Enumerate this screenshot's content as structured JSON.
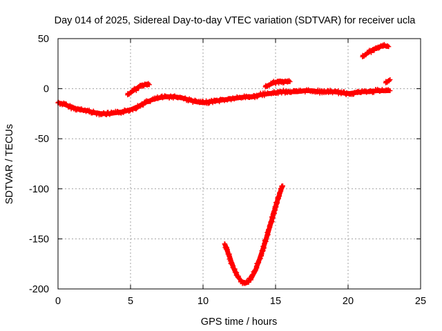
{
  "chart_data": {
    "type": "scatter",
    "title": "Day 014 of 2025, Sidereal Day-to-day VTEC variation (SDTVAR) for receiver ucla",
    "xlabel": "GPS time / hours",
    "ylabel": "SDTVAR / TECUs",
    "xlim": [
      0,
      25
    ],
    "ylim": [
      -200,
      50
    ],
    "xticks": [
      0,
      5,
      10,
      15,
      20,
      25
    ],
    "yticks": [
      -200,
      -150,
      -100,
      -50,
      0,
      50
    ],
    "grid": true,
    "legend": "none",
    "marker": "plus",
    "color": "#ff0000",
    "series": [
      {
        "name": "main-band",
        "points": [
          [
            0,
            -14
          ],
          [
            0.5,
            -16
          ],
          [
            1,
            -19
          ],
          [
            1.5,
            -21
          ],
          [
            2,
            -22
          ],
          [
            2.5,
            -24
          ],
          [
            3,
            -25
          ],
          [
            3.5,
            -25
          ],
          [
            4,
            -24
          ],
          [
            4.5,
            -23
          ],
          [
            5,
            -21
          ],
          [
            5.5,
            -18
          ],
          [
            6,
            -14
          ],
          [
            6.5,
            -11
          ],
          [
            7,
            -9
          ],
          [
            7.5,
            -8
          ],
          [
            8,
            -8
          ],
          [
            8.5,
            -9
          ],
          [
            9,
            -11
          ],
          [
            9.5,
            -13
          ],
          [
            10,
            -14
          ],
          [
            10.5,
            -13
          ],
          [
            11,
            -12
          ],
          [
            11.5,
            -11
          ],
          [
            12,
            -10
          ],
          [
            12.5,
            -9
          ],
          [
            13,
            -8
          ],
          [
            13.5,
            -8
          ],
          [
            14,
            -6
          ],
          [
            14.5,
            -5
          ],
          [
            15,
            -4
          ],
          [
            15.5,
            -3
          ],
          [
            16,
            -3
          ],
          [
            16.5,
            -3
          ],
          [
            17,
            -2
          ],
          [
            17.5,
            -2
          ],
          [
            18,
            -3
          ],
          [
            18.5,
            -3
          ],
          [
            19,
            -3
          ],
          [
            19.5,
            -4
          ],
          [
            20,
            -5
          ],
          [
            20.5,
            -4
          ],
          [
            21,
            -3
          ],
          [
            21.5,
            -3
          ],
          [
            22,
            -2
          ],
          [
            22.5,
            -2
          ],
          [
            22.9,
            -2
          ]
        ]
      },
      {
        "name": "arc-5-6h",
        "points": [
          [
            4.8,
            -6
          ],
          [
            5.1,
            -3
          ],
          [
            5.4,
            0
          ],
          [
            5.7,
            3
          ],
          [
            6,
            4
          ],
          [
            6.3,
            4
          ]
        ]
      },
      {
        "name": "arc-14-16h",
        "points": [
          [
            14.3,
            2
          ],
          [
            14.6,
            4
          ],
          [
            14.9,
            6
          ],
          [
            15.2,
            7
          ],
          [
            15.6,
            7
          ],
          [
            16,
            7
          ]
        ]
      },
      {
        "name": "arc-21-23h",
        "points": [
          [
            21,
            32
          ],
          [
            21.3,
            35
          ],
          [
            21.6,
            38
          ],
          [
            21.9,
            40
          ],
          [
            22.2,
            42
          ],
          [
            22.5,
            43
          ],
          [
            22.8,
            42
          ]
        ]
      },
      {
        "name": "dip-11-15h",
        "points": [
          [
            11.5,
            -155
          ],
          [
            11.8,
            -167
          ],
          [
            12.1,
            -179
          ],
          [
            12.4,
            -188
          ],
          [
            12.7,
            -193
          ],
          [
            13,
            -194
          ],
          [
            13.3,
            -190
          ],
          [
            13.6,
            -182
          ],
          [
            13.9,
            -170
          ],
          [
            14.2,
            -157
          ],
          [
            14.5,
            -143
          ],
          [
            14.8,
            -128
          ],
          [
            15.1,
            -113
          ],
          [
            15.4,
            -100
          ],
          [
            15.5,
            -97
          ]
        ]
      },
      {
        "name": "short-segment-22.8h",
        "points": [
          [
            22.6,
            6
          ],
          [
            22.8,
            8
          ],
          [
            22.9,
            9
          ]
        ]
      }
    ]
  }
}
